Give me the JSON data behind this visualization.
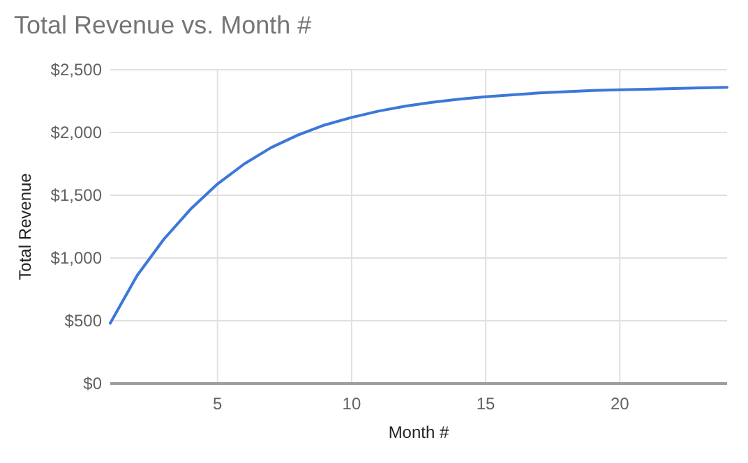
{
  "chart_data": {
    "type": "line",
    "title": "Total Revenue vs. Month #",
    "xlabel": "Month #",
    "ylabel": "Total Revenue",
    "x": [
      1,
      2,
      3,
      4,
      5,
      6,
      7,
      8,
      9,
      10,
      11,
      12,
      13,
      14,
      15,
      16,
      17,
      18,
      19,
      20,
      21,
      22,
      23,
      24
    ],
    "series": [
      {
        "color": "#3c78d8",
        "values": [
          480,
          860,
          1150,
          1390,
          1590,
          1750,
          1880,
          1980,
          2060,
          2120,
          2170,
          2210,
          2240,
          2265,
          2285,
          2300,
          2315,
          2325,
          2335,
          2340,
          2345,
          2350,
          2355,
          2360
        ]
      }
    ],
    "xlim": [
      1,
      24
    ],
    "xticks": [
      5,
      10,
      15,
      20
    ],
    "ylim": [
      0,
      2500
    ],
    "yticks": [
      {
        "value": 0,
        "label": "$0"
      },
      {
        "value": 500,
        "label": "$500"
      },
      {
        "value": 1000,
        "label": "$1,000"
      },
      {
        "value": 1500,
        "label": "$1,500"
      },
      {
        "value": 2000,
        "label": "$2,000"
      },
      {
        "value": 2500,
        "label": "$2,500"
      }
    ],
    "grid": true,
    "marker": "none",
    "line_style": "solid"
  }
}
